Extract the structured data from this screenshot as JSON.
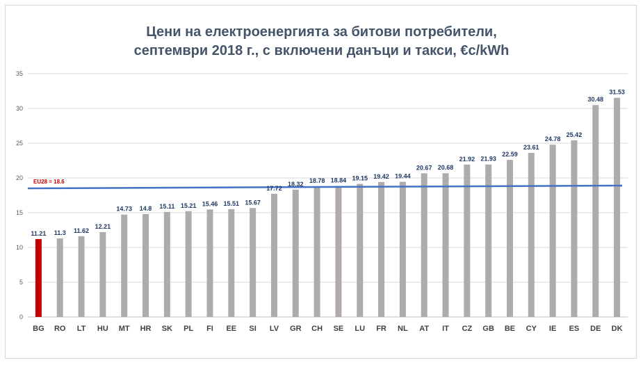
{
  "chart_data": {
    "type": "bar",
    "title": [
      "Цени на електроенергията за битови потребители,",
      "септември 2018 г., с включени данъци и такси, €c/kWh"
    ],
    "xlabel": "",
    "ylabel": "",
    "ylim": [
      0,
      35
    ],
    "yticks": [
      "0",
      "5",
      "10",
      "15",
      "20",
      "25",
      "30",
      "35"
    ],
    "grid": true,
    "categories": [
      "BG",
      "RO",
      "LT",
      "HU",
      "MT",
      "HR",
      "SK",
      "PL",
      "FI",
      "EE",
      "SI",
      "LV",
      "GR",
      "CH",
      "SE",
      "LU",
      "FR",
      "NL",
      "AT",
      "IT",
      "CZ",
      "GB",
      "BE",
      "CY",
      "IE",
      "ES",
      "DE",
      "DK"
    ],
    "values": [
      11.21,
      11.3,
      11.62,
      12.21,
      14.73,
      14.8,
      15.11,
      15.21,
      15.46,
      15.51,
      15.67,
      17.72,
      18.32,
      18.78,
      18.84,
      19.15,
      19.42,
      19.44,
      20.67,
      20.68,
      21.92,
      21.93,
      22.59,
      23.61,
      24.78,
      25.42,
      30.48,
      31.53
    ],
    "value_labels": [
      "11.21",
      "11.3",
      "11.62",
      "12.21",
      "14.73",
      "14.8",
      "15.11",
      "15.21",
      "15.46",
      "15.51",
      "15.67",
      "17.72",
      "18.32",
      "18.78",
      "18.84",
      "19.15",
      "19.42",
      "19.44",
      "20.67",
      "20.68",
      "21.92",
      "21.93",
      "22.59",
      "23.61",
      "24.78",
      "25.42",
      "30.48",
      "31.53"
    ],
    "highlight_category": "BG",
    "colors": {
      "bar": "#afabab",
      "highlight_bar": "#c00000",
      "reference_line": "#4472c4",
      "value_label": "#1f3864",
      "title": "#44546a",
      "grid": "#d9d9d9"
    },
    "reference_line": {
      "label": "EU28 = 18.6",
      "y_start": 18.5,
      "y_end": 18.9
    }
  }
}
